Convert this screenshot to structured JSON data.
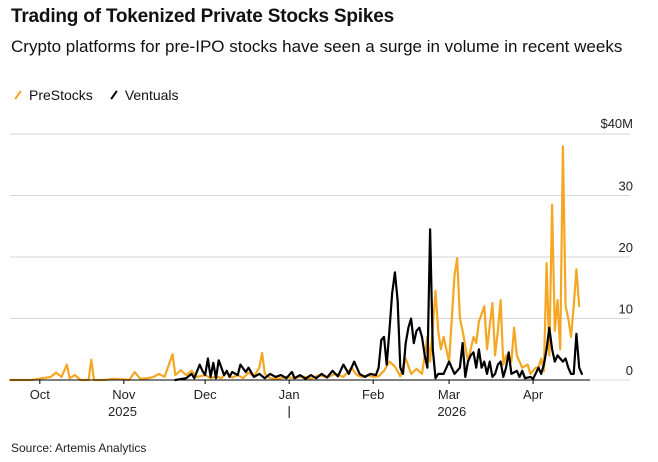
{
  "title": "Trading of Tokenized Private Stocks Spikes",
  "subtitle": "Crypto platforms for pre-IPO stocks have seen a surge in volume in recent weeks",
  "legend": [
    {
      "name": "PreStocks",
      "color": "#f5a623"
    },
    {
      "name": "Ventuals",
      "color": "#000000"
    }
  ],
  "source": "Source: Artemis Analytics",
  "chart_data": {
    "type": "line",
    "title": "Trading of Tokenized Private Stocks Spikes",
    "ylabel": "",
    "yunit_label": "$40M",
    "ylim": [
      0,
      40
    ],
    "yticks": [
      0,
      10,
      20,
      30
    ],
    "grid": true,
    "legend_position": "top-left",
    "x_tick_labels": [
      "Oct",
      "Nov",
      "Dec",
      "Jan",
      "Feb",
      "Mar",
      "Apr"
    ],
    "x_tick_dates": [
      "2025-10-01",
      "2025-11-01",
      "2025-12-01",
      "2026-01-01",
      "2026-02-01",
      "2026-03-01",
      "2026-04-01"
    ],
    "year_labels": [
      "2025",
      "2026"
    ],
    "xlim": [
      "2025-09-20",
      "2026-04-22"
    ],
    "series": [
      {
        "name": "PreStocks",
        "color": "#f5a623",
        "points": [
          [
            "2025-09-20",
            0
          ],
          [
            "2025-09-28",
            0
          ],
          [
            "2025-10-02",
            0.3
          ],
          [
            "2025-10-05",
            0.5
          ],
          [
            "2025-10-07",
            1.2
          ],
          [
            "2025-10-09",
            0.5
          ],
          [
            "2025-10-11",
            2.5
          ],
          [
            "2025-10-12",
            0.3
          ],
          [
            "2025-10-14",
            0.8
          ],
          [
            "2025-10-16",
            0
          ],
          [
            "2025-10-19",
            0
          ],
          [
            "2025-10-20",
            3.3
          ],
          [
            "2025-10-21",
            0
          ],
          [
            "2025-10-25",
            0
          ],
          [
            "2025-10-28",
            0.2
          ],
          [
            "2025-11-01",
            0.1
          ],
          [
            "2025-11-03",
            0
          ],
          [
            "2025-11-05",
            1.3
          ],
          [
            "2025-11-07",
            0.2
          ],
          [
            "2025-11-10",
            0.3
          ],
          [
            "2025-11-12",
            0.5
          ],
          [
            "2025-11-14",
            1.0
          ],
          [
            "2025-11-16",
            0.5
          ],
          [
            "2025-11-19",
            4.2
          ],
          [
            "2025-11-20",
            0.8
          ],
          [
            "2025-11-22",
            1.6
          ],
          [
            "2025-11-24",
            0.8
          ],
          [
            "2025-11-26",
            1.5
          ],
          [
            "2025-11-28",
            0.5
          ],
          [
            "2025-12-01",
            0.8
          ],
          [
            "2025-12-03",
            0.3
          ],
          [
            "2025-12-05",
            0.6
          ],
          [
            "2025-12-07",
            0.3
          ],
          [
            "2025-12-09",
            1.2
          ],
          [
            "2025-12-11",
            0.4
          ],
          [
            "2025-12-13",
            0.8
          ],
          [
            "2025-12-15",
            0.3
          ],
          [
            "2025-12-17",
            1.2
          ],
          [
            "2025-12-19",
            0.6
          ],
          [
            "2025-12-21",
            2.0
          ],
          [
            "2025-12-22",
            4.4
          ],
          [
            "2025-12-23",
            1.0
          ],
          [
            "2025-12-25",
            0.3
          ],
          [
            "2025-12-28",
            0.2
          ],
          [
            "2025-12-31",
            0.5
          ],
          [
            "2026-01-03",
            0.3
          ],
          [
            "2026-01-06",
            0.6
          ],
          [
            "2026-01-09",
            0.2
          ],
          [
            "2026-01-12",
            0.8
          ],
          [
            "2026-01-15",
            0.4
          ],
          [
            "2026-01-18",
            1.0
          ],
          [
            "2026-01-21",
            0.5
          ],
          [
            "2026-01-24",
            2.0
          ],
          [
            "2026-01-26",
            0.8
          ],
          [
            "2026-01-28",
            0.5
          ],
          [
            "2026-01-30",
            0.8
          ],
          [
            "2026-02-01",
            0.5
          ],
          [
            "2026-02-03",
            0.6
          ],
          [
            "2026-02-05",
            1.5
          ],
          [
            "2026-02-07",
            3.0
          ],
          [
            "2026-02-09",
            2.2
          ],
          [
            "2026-02-11",
            0.6
          ],
          [
            "2026-02-13",
            3.5
          ],
          [
            "2026-02-15",
            1.0
          ],
          [
            "2026-02-17",
            1.8
          ],
          [
            "2026-02-19",
            1.0
          ],
          [
            "2026-02-21",
            7.0
          ],
          [
            "2026-02-22",
            3.0
          ],
          [
            "2026-02-24",
            14.5
          ],
          [
            "2026-02-25",
            8.0
          ],
          [
            "2026-02-26",
            5.0
          ],
          [
            "2026-02-27",
            7.0
          ],
          [
            "2026-03-01",
            3.0
          ],
          [
            "2026-03-02",
            10.0
          ],
          [
            "2026-03-03",
            17.0
          ],
          [
            "2026-03-04",
            19.8
          ],
          [
            "2026-03-05",
            10.0
          ],
          [
            "2026-03-06",
            8.0
          ],
          [
            "2026-03-08",
            3.0
          ],
          [
            "2026-03-10",
            7.0
          ],
          [
            "2026-03-11",
            6.0
          ],
          [
            "2026-03-12",
            9.5
          ],
          [
            "2026-03-14",
            12.0
          ],
          [
            "2026-03-15",
            5.0
          ],
          [
            "2026-03-17",
            12.5
          ],
          [
            "2026-03-18",
            4.0
          ],
          [
            "2026-03-19",
            8.0
          ],
          [
            "2026-03-20",
            13.0
          ],
          [
            "2026-03-21",
            2.5
          ],
          [
            "2026-03-22",
            4.0
          ],
          [
            "2026-03-24",
            3.0
          ],
          [
            "2026-03-25",
            8.5
          ],
          [
            "2026-03-26",
            4.0
          ],
          [
            "2026-03-28",
            2.0
          ],
          [
            "2026-03-30",
            2.5
          ],
          [
            "2026-03-31",
            1.0
          ],
          [
            "2026-04-02",
            2.0
          ],
          [
            "2026-04-03",
            2.0
          ],
          [
            "2026-04-04",
            3.5
          ],
          [
            "2026-04-05",
            1.5
          ],
          [
            "2026-04-06",
            19.0
          ],
          [
            "2026-04-07",
            4.0
          ],
          [
            "2026-04-08",
            28.5
          ],
          [
            "2026-04-09",
            8.0
          ],
          [
            "2026-04-10",
            13.0
          ],
          [
            "2026-04-11",
            5.0
          ],
          [
            "2026-04-12",
            38.0
          ],
          [
            "2026-04-13",
            12.0
          ],
          [
            "2026-04-14",
            10.0
          ],
          [
            "2026-04-15",
            7.0
          ],
          [
            "2026-04-16",
            12.0
          ],
          [
            "2026-04-17",
            18.0
          ],
          [
            "2026-04-18",
            12.0
          ]
        ]
      },
      {
        "name": "Ventuals",
        "color": "#000000",
        "points": [
          [
            "2025-11-20",
            0
          ],
          [
            "2025-11-24",
            0.3
          ],
          [
            "2025-11-26",
            1.0
          ],
          [
            "2025-11-27",
            0.3
          ],
          [
            "2025-11-29",
            2.5
          ],
          [
            "2025-11-30",
            1.5
          ],
          [
            "2025-12-01",
            0.8
          ],
          [
            "2025-12-02",
            3.5
          ],
          [
            "2025-12-03",
            0.5
          ],
          [
            "2025-12-04",
            2.8
          ],
          [
            "2025-12-05",
            0.3
          ],
          [
            "2025-12-06",
            3.2
          ],
          [
            "2025-12-08",
            0.8
          ],
          [
            "2025-12-09",
            1.5
          ],
          [
            "2025-12-10",
            0.5
          ],
          [
            "2025-12-11",
            1.3
          ],
          [
            "2025-12-13",
            0.8
          ],
          [
            "2025-12-14",
            2.5
          ],
          [
            "2025-12-16",
            1.3
          ],
          [
            "2025-12-17",
            2.0
          ],
          [
            "2025-12-19",
            0.5
          ],
          [
            "2025-12-21",
            1.0
          ],
          [
            "2025-12-23",
            0.3
          ],
          [
            "2025-12-25",
            1.0
          ],
          [
            "2025-12-27",
            0.5
          ],
          [
            "2025-12-29",
            0.8
          ],
          [
            "2025-12-31",
            0.3
          ],
          [
            "2026-01-02",
            1.3
          ],
          [
            "2026-01-03",
            0.3
          ],
          [
            "2026-01-05",
            0.8
          ],
          [
            "2026-01-07",
            0.2
          ],
          [
            "2026-01-09",
            0.8
          ],
          [
            "2026-01-11",
            0.3
          ],
          [
            "2026-01-13",
            1.0
          ],
          [
            "2026-01-15",
            0.4
          ],
          [
            "2026-01-17",
            1.5
          ],
          [
            "2026-01-19",
            0.6
          ],
          [
            "2026-01-21",
            2.5
          ],
          [
            "2026-01-23",
            1.0
          ],
          [
            "2026-01-25",
            3.0
          ],
          [
            "2026-01-27",
            1.0
          ],
          [
            "2026-01-29",
            0.5
          ],
          [
            "2026-01-31",
            1.0
          ],
          [
            "2026-02-02",
            0.8
          ],
          [
            "2026-02-03",
            2.0
          ],
          [
            "2026-02-04",
            6.5
          ],
          [
            "2026-02-05",
            7.0
          ],
          [
            "2026-02-06",
            2.5
          ],
          [
            "2026-02-07",
            8.0
          ],
          [
            "2026-02-08",
            14.0
          ],
          [
            "2026-02-09",
            17.5
          ],
          [
            "2026-02-10",
            13.0
          ],
          [
            "2026-02-11",
            2.0
          ],
          [
            "2026-02-12",
            1.0
          ],
          [
            "2026-02-13",
            6.0
          ],
          [
            "2026-02-14",
            8.5
          ],
          [
            "2026-02-15",
            10.0
          ],
          [
            "2026-02-16",
            6.0
          ],
          [
            "2026-02-17",
            8.0
          ],
          [
            "2026-02-18",
            8.5
          ],
          [
            "2026-02-19",
            7.0
          ],
          [
            "2026-02-20",
            4.0
          ],
          [
            "2026-02-21",
            2.0
          ],
          [
            "2026-02-22",
            24.5
          ],
          [
            "2026-02-23",
            5.0
          ],
          [
            "2026-02-24",
            0.3
          ],
          [
            "2026-02-25",
            1.0
          ],
          [
            "2026-02-27",
            1.0
          ],
          [
            "2026-03-01",
            3.0
          ],
          [
            "2026-03-03",
            1.0
          ],
          [
            "2026-03-05",
            2.0
          ],
          [
            "2026-03-06",
            6.0
          ],
          [
            "2026-03-07",
            0.5
          ],
          [
            "2026-03-08",
            3.0
          ],
          [
            "2026-03-09",
            4.0
          ],
          [
            "2026-03-10",
            4.5
          ],
          [
            "2026-03-11",
            2.0
          ],
          [
            "2026-03-12",
            5.0
          ],
          [
            "2026-03-13",
            2.0
          ],
          [
            "2026-03-14",
            3.0
          ],
          [
            "2026-03-15",
            1.0
          ],
          [
            "2026-03-16",
            3.0
          ],
          [
            "2026-03-17",
            0.5
          ],
          [
            "2026-03-18",
            1.0
          ],
          [
            "2026-03-19",
            2.5
          ],
          [
            "2026-03-20",
            3.0
          ],
          [
            "2026-03-21",
            0.5
          ],
          [
            "2026-03-22",
            2.0
          ],
          [
            "2026-03-23",
            4.5
          ],
          [
            "2026-03-24",
            1.0
          ],
          [
            "2026-03-26",
            1.5
          ],
          [
            "2026-03-27",
            0.5
          ],
          [
            "2026-03-28",
            1.5
          ],
          [
            "2026-03-29",
            0.3
          ],
          [
            "2026-03-31",
            0.5
          ],
          [
            "2026-04-01",
            0.2
          ],
          [
            "2026-04-03",
            2.0
          ],
          [
            "2026-04-04",
            1.0
          ],
          [
            "2026-04-05",
            2.5
          ],
          [
            "2026-04-06",
            5.0
          ],
          [
            "2026-04-07",
            8.5
          ],
          [
            "2026-04-08",
            5.0
          ],
          [
            "2026-04-09",
            3.0
          ],
          [
            "2026-04-10",
            4.0
          ],
          [
            "2026-04-11",
            3.5
          ],
          [
            "2026-04-12",
            3.0
          ],
          [
            "2026-04-13",
            3.5
          ],
          [
            "2026-04-14",
            2.0
          ],
          [
            "2026-04-15",
            1.0
          ],
          [
            "2026-04-16",
            1.0
          ],
          [
            "2026-04-17",
            7.5
          ],
          [
            "2026-04-18",
            2.0
          ],
          [
            "2026-04-19",
            1.0
          ]
        ]
      }
    ]
  }
}
